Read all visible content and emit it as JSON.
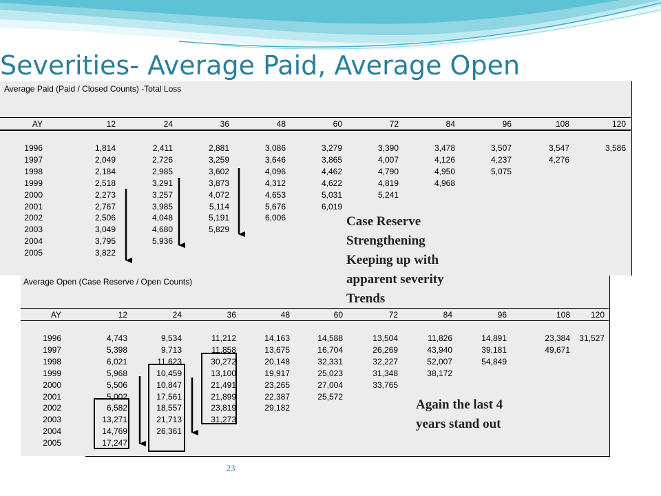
{
  "slide": {
    "title": "Severities- Average Paid, Average Open",
    "page_number": "23"
  },
  "annotations": {
    "case_reserve": [
      "Case Reserve",
      "Strengthening",
      "Keeping up with",
      "apparent severity",
      "Trends"
    ],
    "last_years": [
      "Again the last 4",
      "years stand out"
    ]
  },
  "tables": {
    "average_paid": {
      "title": "Average Paid (Paid / Closed Counts) -Total Loss",
      "columns": [
        "AY",
        "12",
        "24",
        "36",
        "48",
        "60",
        "72",
        "84",
        "96",
        "108",
        "120"
      ],
      "rows": [
        [
          "1996",
          "1,814",
          "2,411",
          "2,881",
          "3,086",
          "3,279",
          "3,390",
          "3,478",
          "3,507",
          "3,547",
          "3,586"
        ],
        [
          "1997",
          "2,049",
          "2,726",
          "3,259",
          "3,646",
          "3,865",
          "4,007",
          "4,126",
          "4,237",
          "4,276",
          ""
        ],
        [
          "1998",
          "2,184",
          "2,985",
          "3,602",
          "4,096",
          "4,462",
          "4,790",
          "4,950",
          "5,075",
          "",
          ""
        ],
        [
          "1999",
          "2,518",
          "3,291",
          "3,873",
          "4,312",
          "4,622",
          "4,819",
          "4,968",
          "",
          "",
          ""
        ],
        [
          "2000",
          "2,273",
          "3,257",
          "4,072",
          "4,653",
          "5,031",
          "5,241",
          "",
          "",
          "",
          ""
        ],
        [
          "2001",
          "2,767",
          "3,985",
          "5,114",
          "5,676",
          "6,019",
          "",
          "",
          "",
          "",
          ""
        ],
        [
          "2002",
          "2,506",
          "4,048",
          "5,191",
          "6,006",
          "",
          "",
          "",
          "",
          "",
          ""
        ],
        [
          "2003",
          "3,049",
          "4,680",
          "5,829",
          "",
          "",
          "",
          "",
          "",
          "",
          ""
        ],
        [
          "2004",
          "3,795",
          "5,936",
          "",
          "",
          "",
          "",
          "",
          "",
          "",
          ""
        ],
        [
          "2005",
          "3,822",
          "",
          "",
          "",
          "",
          "",
          "",
          "",
          "",
          ""
        ]
      ]
    },
    "average_open": {
      "title": "Average Open (Case Reserve / Open Counts)",
      "columns": [
        "AY",
        "12",
        "24",
        "36",
        "48",
        "60",
        "72",
        "84",
        "96",
        "108",
        "120"
      ],
      "rows": [
        [
          "1996",
          "4,743",
          "9,534",
          "11,212",
          "14,163",
          "14,588",
          "13,504",
          "11,826",
          "14,891",
          "23,384",
          "31,527"
        ],
        [
          "1997",
          "5,398",
          "9,713",
          "11,858",
          "13,675",
          "16,704",
          "26,269",
          "43,940",
          "39,181",
          "49,671",
          ""
        ],
        [
          "1998",
          "6,021",
          "11,623",
          "30,272",
          "20,148",
          "32,331",
          "32,227",
          "52,007",
          "54,849",
          "",
          ""
        ],
        [
          "1999",
          "5,968",
          "10,459",
          "13,100",
          "19,917",
          "25,023",
          "31,348",
          "38,172",
          "",
          "",
          ""
        ],
        [
          "2000",
          "5,506",
          "10,847",
          "21,491",
          "23,265",
          "27,004",
          "33,765",
          "",
          "",
          "",
          ""
        ],
        [
          "2001",
          "5,002",
          "17,561",
          "21,899",
          "22,387",
          "25,572",
          "",
          "",
          "",
          "",
          ""
        ],
        [
          "2002",
          "6,582",
          "18,557",
          "23,819",
          "29,182",
          "",
          "",
          "",
          "",
          "",
          ""
        ],
        [
          "2003",
          "13,271",
          "21,713",
          "31,273",
          "",
          "",
          "",
          "",
          "",
          "",
          ""
        ],
        [
          "2004",
          "14,769",
          "26,361",
          "",
          "",
          "",
          "",
          "",
          "",
          "",
          ""
        ],
        [
          "2005",
          "17,247",
          "",
          "",
          "",
          "",
          "",
          "",
          "",
          "",
          ""
        ]
      ]
    }
  },
  "colors": {
    "title": "#2a7f9b",
    "panel": "#ececec",
    "wave_light": "#cfeef3",
    "wave_mid": "#8fd5e2",
    "wave_dark": "#3fb0c8"
  }
}
